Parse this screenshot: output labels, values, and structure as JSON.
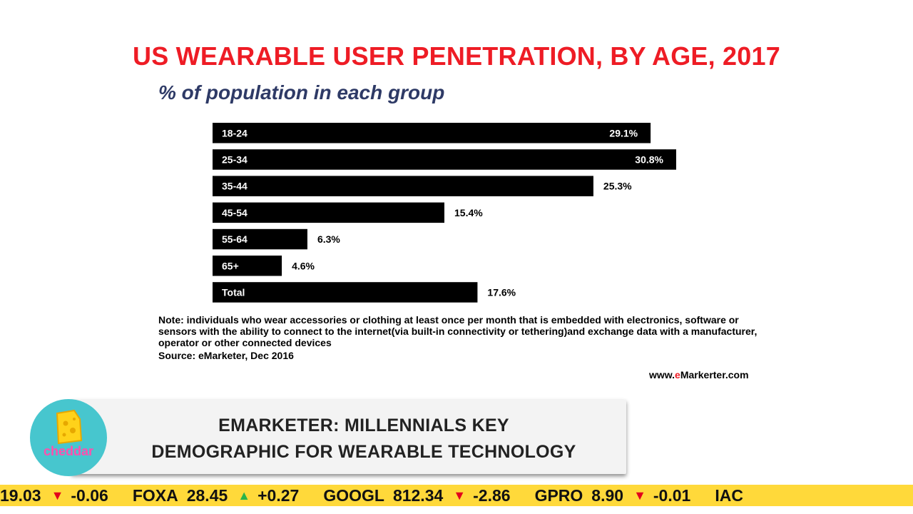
{
  "chart_data": {
    "type": "bar",
    "orientation": "horizontal",
    "title": "US WEARABLE USER PENETRATION, BY AGE, 2017",
    "subtitle": "% of population in each group",
    "categories": [
      "18-24",
      "25-34",
      "35-44",
      "45-54",
      "55-64",
      "65+",
      "Total"
    ],
    "values": [
      29.1,
      30.8,
      25.3,
      15.4,
      6.3,
      4.6,
      17.6
    ],
    "value_labels": [
      "29.1%",
      "30.8%",
      "25.3%",
      "15.4%",
      "6.3%",
      "4.6%",
      "17.6%"
    ],
    "label_inside": [
      true,
      true,
      false,
      false,
      false,
      false,
      false
    ],
    "xlim": [
      0,
      30.8
    ],
    "grid": false,
    "bar_color": "#000000"
  },
  "notes": {
    "note": "Note: individuals who wear accessories or clothing at least once per month that is embedded with electronics, software or sensors with the ability to connect to the internet(via built-in connectivity or tethering)and exchange data with a manufacturer, operator or other connected devices",
    "source": "Source: eMarketer, Dec 2016",
    "website_prefix": "www.",
    "website_accent": "e",
    "website_suffix": "Markerter.com"
  },
  "lower_third": {
    "headline_line1": "EMARKETER: MILLENNIALS KEY",
    "headline_line2": "DEMOGRAPHIC FOR WEARABLE TECHNOLOGY",
    "logo_text": "cheddar",
    "logo_icon": "cheese-icon",
    "logo_color": "#47c6ce"
  },
  "ticker": {
    "items": [
      {
        "symbol": "",
        "price": "19.03",
        "direction": "down",
        "change": "-0.06"
      },
      {
        "symbol": "FOXA",
        "price": "28.45",
        "direction": "up",
        "change": "+0.27"
      },
      {
        "symbol": "GOOGL",
        "price": "812.34",
        "direction": "down",
        "change": "-2.86"
      },
      {
        "symbol": "GPRO",
        "price": "8.90",
        "direction": "down",
        "change": "-0.01"
      },
      {
        "symbol": "IAC",
        "price": "",
        "direction": "",
        "change": ""
      }
    ],
    "colors": {
      "background": "#ffd93a",
      "down": "#e3001b",
      "up": "#2bb34a"
    }
  }
}
